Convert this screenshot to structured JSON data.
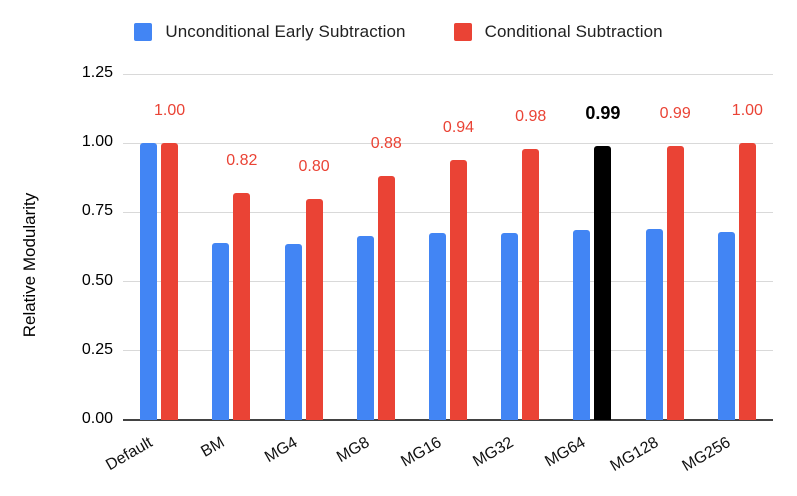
{
  "legend": {
    "items": [
      {
        "label": "Unconditional Early Subtraction",
        "color": "#4285F4",
        "icon": "blue-square-swatch"
      },
      {
        "label": "Conditional Subtraction",
        "color": "#EA4335",
        "icon": "red-square-swatch"
      }
    ]
  },
  "chart_data": {
    "type": "bar",
    "title": "",
    "xlabel": "",
    "ylabel": "Relative Modularity",
    "categories": [
      "Default",
      "BM",
      "MG4",
      "MG8",
      "MG16",
      "MG32",
      "MG64",
      "MG128",
      "MG256"
    ],
    "series": [
      {
        "name": "Unconditional Early Subtraction",
        "color": "#4285F4",
        "values": [
          1.0,
          0.64,
          0.635,
          0.665,
          0.675,
          0.675,
          0.685,
          0.69,
          0.68
        ]
      },
      {
        "name": "Conditional Subtraction",
        "color": "#EA4335",
        "values": [
          1.0,
          0.82,
          0.8,
          0.88,
          0.94,
          0.98,
          0.99,
          0.99,
          1.0
        ],
        "data_labels": [
          "1.00",
          "0.82",
          "0.80",
          "0.88",
          "0.94",
          "0.98",
          "0.99",
          "0.99",
          "1.00"
        ]
      }
    ],
    "highlight": {
      "category": "MG64",
      "index": 6,
      "bar_color": "#000000",
      "label_color": "#000000",
      "label_bold": true
    },
    "yticks": [
      "0.00",
      "0.25",
      "0.50",
      "0.75",
      "1.00",
      "1.25"
    ],
    "ylim": [
      0,
      1.25
    ],
    "grid": true,
    "legend_position": "top",
    "colors": {
      "grid": "#d9d9d9",
      "axis": "#424242",
      "tick_text": "#000000",
      "data_label": "#EA4335"
    }
  }
}
